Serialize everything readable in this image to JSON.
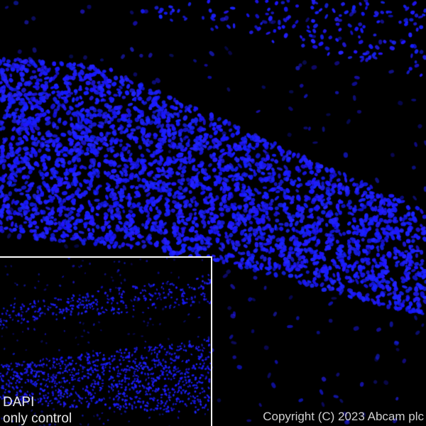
{
  "image": {
    "description_type": "fluorescence microscopy, DAPI-stained nuclei",
    "stain_color": "#1a1aff",
    "background_color": "#000000"
  },
  "inset": {
    "label_line1": "DAPI",
    "label_line2": "only control",
    "border_color": "#ffffff"
  },
  "copyright": "Copyright (C) 2023 Abcam plc"
}
